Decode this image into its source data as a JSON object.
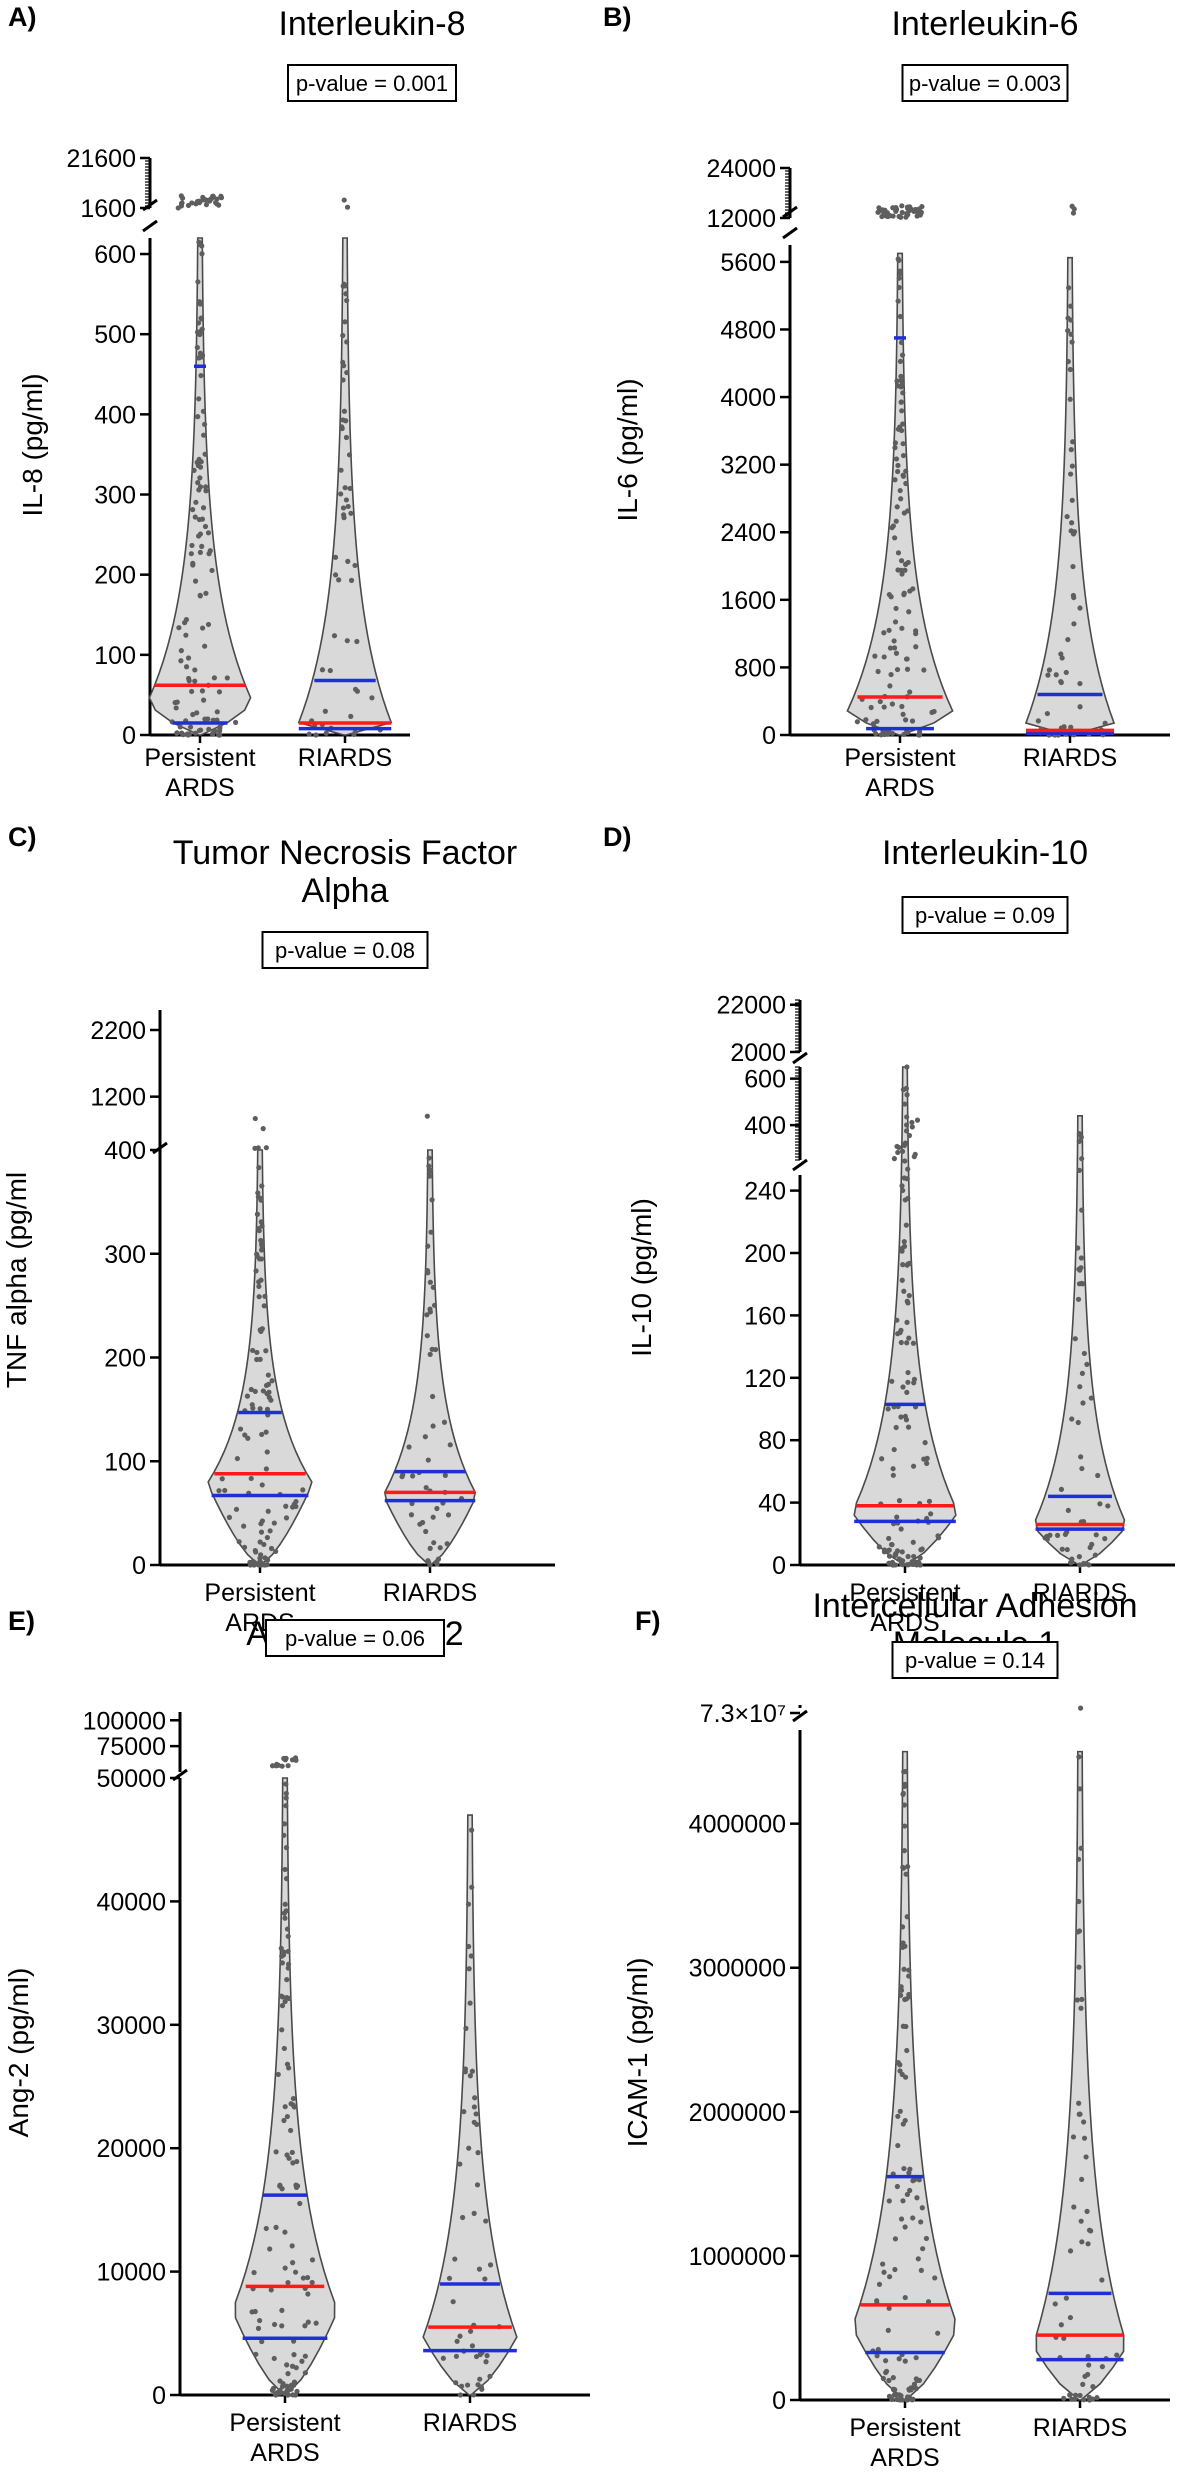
{
  "colors": {
    "violin_fill": "#d9d9d9",
    "violin_stroke": "#4a4a4a",
    "dot": "#5e5e5e",
    "median": "#ff1a1a",
    "quartile": "#1f2fd6",
    "axis": "#000000"
  },
  "chart_data": [
    {
      "type": "violin",
      "panel_label": "A)",
      "title": [
        "Interleukin-8"
      ],
      "p_value": "p-value = 0.001",
      "ylabel": "IL-8 (pg/ml)",
      "categories": [
        "Persistent ARDS",
        "RIARDS"
      ],
      "category_lines": [
        [
          "Persistent",
          "ARDS"
        ],
        [
          "RIARDS"
        ]
      ],
      "yticks": [
        "0",
        "100",
        "200",
        "300",
        "400",
        "500",
        "600",
        "1600",
        "21600"
      ],
      "segments": [
        {
          "range": [
            0,
            620
          ],
          "ticks": [
            0,
            100,
            200,
            300,
            400,
            500,
            600
          ]
        },
        {
          "range": [
            1600,
            21600
          ],
          "ticks": [
            1600,
            21600
          ]
        }
      ],
      "series": [
        {
          "name": "Persistent ARDS",
          "median": 62,
          "q1": 15,
          "q3": 460,
          "max_visible": 620,
          "outliers_above": 30
        },
        {
          "name": "RIARDS",
          "median": 15,
          "q1": 8,
          "q3": 68,
          "max_visible": 620,
          "outliers_above": 2
        }
      ]
    },
    {
      "type": "violin",
      "panel_label": "B)",
      "title": [
        "Interleukin-6"
      ],
      "p_value": "p-value = 0.003",
      "ylabel": "IL-6 (pg/ml)",
      "categories": [
        "Persistent ARDS",
        "RIARDS"
      ],
      "category_lines": [
        [
          "Persistent",
          "ARDS"
        ],
        [
          "RIARDS"
        ]
      ],
      "yticks": [
        "0",
        "800",
        "1600",
        "2400",
        "3200",
        "4000",
        "4800",
        "5600",
        "12000",
        "24000"
      ],
      "segments": [
        {
          "range": [
            0,
            5800
          ],
          "ticks": [
            0,
            800,
            1600,
            2400,
            3200,
            4000,
            4800,
            5600
          ]
        },
        {
          "range": [
            12000,
            24000
          ],
          "ticks": [
            12000,
            24000
          ]
        }
      ],
      "series": [
        {
          "name": "Persistent ARDS",
          "median": 450,
          "q1": 75,
          "q3": 4700,
          "max_visible": 5700,
          "outliers_above": 40
        },
        {
          "name": "RIARDS",
          "median": 55,
          "q1": 20,
          "q3": 480,
          "max_visible": 5650,
          "outliers_above": 3
        }
      ]
    },
    {
      "type": "violin",
      "panel_label": "C)",
      "title": [
        "Tumor Necrosis Factor",
        "Alpha"
      ],
      "p_value": "p-value = 0.08",
      "ylabel": "TNF alpha (pg/ml",
      "categories": [
        "Persistent ARDS",
        "RIARDS"
      ],
      "category_lines": [
        [
          "Persistent",
          "ARDS"
        ],
        [
          "RIARDS"
        ]
      ],
      "yticks": [
        "0",
        "100",
        "200",
        "300",
        "400",
        "1200",
        "2200"
      ],
      "segments": [
        {
          "range": [
            0,
            400
          ],
          "ticks": [
            0,
            100,
            200,
            300,
            400
          ]
        },
        {
          "range": [
            400,
            2500
          ],
          "ticks": [
            1200,
            2200
          ]
        }
      ],
      "series": [
        {
          "name": "Persistent ARDS",
          "median": 88,
          "q1": 67,
          "q3": 147,
          "max_visible": 400,
          "outliers_above": 5
        },
        {
          "name": "RIARDS",
          "median": 70,
          "q1": 62,
          "q3": 90,
          "max_visible": 400,
          "outliers_above": 1
        }
      ]
    },
    {
      "type": "violin",
      "panel_label": "D)",
      "title": [
        "Interleukin-10"
      ],
      "p_value": "p-value = 0.09",
      "ylabel": "IL-10 (pg/ml)",
      "categories": [
        "Persistent ARDS",
        "RIARDS"
      ],
      "category_lines": [
        [
          "Persistent",
          "ARDS"
        ],
        [
          "RIARDS"
        ]
      ],
      "yticks": [
        "0",
        "40",
        "80",
        "120",
        "160",
        "200",
        "240",
        "400",
        "600",
        "2000",
        "22000"
      ],
      "segments": [
        {
          "range": [
            0,
            250
          ],
          "ticks": [
            0,
            40,
            80,
            120,
            160,
            200,
            240
          ]
        },
        {
          "range": [
            250,
            650
          ],
          "ticks": [
            400,
            600
          ]
        },
        {
          "range": [
            2000,
            24000
          ],
          "ticks": [
            2000,
            22000
          ]
        }
      ],
      "series": [
        {
          "name": "Persistent ARDS",
          "median": 38,
          "q1": 28,
          "q3": 103,
          "max_visible": 650,
          "outliers_above": 12
        },
        {
          "name": "RIARDS",
          "median": 26,
          "q1": 23,
          "q3": 44,
          "max_visible": 440,
          "outliers_above": 0
        }
      ]
    },
    {
      "type": "violin",
      "panel_label": "E)",
      "title": [
        "Angiopoietin-2"
      ],
      "p_value": "p-value = 0.06",
      "ylabel": "Ang-2 (pg/ml)",
      "categories": [
        "Persistent ARDS",
        "RIARDS"
      ],
      "category_lines": [
        [
          "Persistent",
          "ARDS"
        ],
        [
          "RIARDS"
        ]
      ],
      "yticks": [
        "0",
        "10000",
        "20000",
        "30000",
        "40000",
        "50000",
        "75000",
        "100000"
      ],
      "segments": [
        {
          "range": [
            0,
            50000
          ],
          "ticks": [
            0,
            10000,
            20000,
            30000,
            40000,
            50000
          ]
        },
        {
          "range": [
            50000,
            108000
          ],
          "ticks": [
            75000,
            100000
          ]
        }
      ],
      "series": [
        {
          "name": "Persistent ARDS",
          "median": 8800,
          "q1": 4600,
          "q3": 16200,
          "max_visible": 50000,
          "outliers_above": 12
        },
        {
          "name": "RIARDS",
          "median": 5500,
          "q1": 3600,
          "q3": 9000,
          "max_visible": 47000,
          "outliers_above": 0
        }
      ]
    },
    {
      "type": "violin",
      "panel_label": "F)",
      "title": [
        "Intercellular Adhesion",
        "Molecule 1"
      ],
      "p_value": "p-value = 0.14",
      "ylabel": "ICAM-1 (pg/ml)",
      "categories": [
        "Persistent ARDS",
        "RIARDS"
      ],
      "category_lines": [
        [
          "Persistent",
          "ARDS"
        ],
        [
          "RIARDS"
        ]
      ],
      "yticks": [
        "0",
        "1000000",
        "2000000",
        "3000000",
        "4000000",
        "7.3×10⁷"
      ],
      "segments": [
        {
          "range": [
            0,
            4650000
          ],
          "ticks": [
            0,
            1000000,
            2000000,
            3000000,
            4000000
          ]
        },
        {
          "range": [
            70000000,
            73000000
          ],
          "ticks": []
        }
      ],
      "top_tick_label": "7.3×10⁷",
      "series": [
        {
          "name": "Persistent ARDS",
          "median": 660000,
          "q1": 330000,
          "q3": 1550000,
          "max_visible": 4500000,
          "outliers_above": 0
        },
        {
          "name": "RIARDS",
          "median": 450000,
          "q1": 280000,
          "q3": 740000,
          "max_visible": 4500000,
          "outliers_above": 1
        }
      ]
    }
  ]
}
